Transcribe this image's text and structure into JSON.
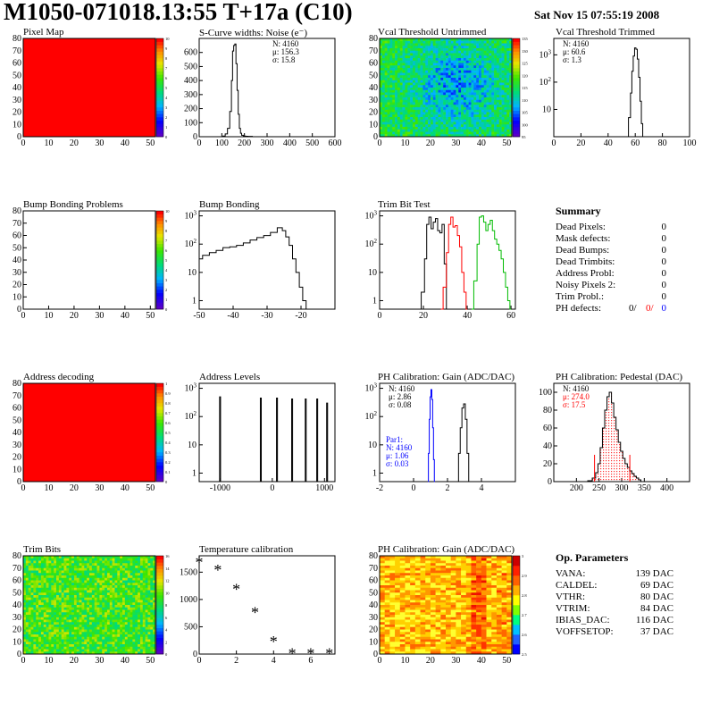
{
  "header": {
    "title": "M1050-071018.13:55 T+17a (C10)",
    "date": "Sat Nov 15 07:55:19 2008"
  },
  "chart_data": [
    {
      "id": "pixel-map",
      "type": "heatmap",
      "title": "Pixel Map",
      "xlim": [
        0,
        52
      ],
      "ylim": [
        0,
        80
      ],
      "xticks": [
        0,
        10,
        20,
        30,
        40,
        50
      ],
      "yticks": [
        0,
        10,
        20,
        30,
        40,
        50,
        60,
        70,
        80
      ],
      "fill": "uniform",
      "fill_color": "#ff0000",
      "zlim": [
        0,
        10
      ],
      "palette_ticks": [
        "0",
        "1",
        "2",
        "3",
        "4",
        "5",
        "6",
        "7",
        "8",
        "9",
        "10"
      ]
    },
    {
      "id": "scurve",
      "type": "line",
      "title": "S-Curve widths: Noise (e⁻)",
      "xlim": [
        0,
        600
      ],
      "ylim": [
        0,
        700
      ],
      "ylog": false,
      "xticks": [
        0,
        100,
        200,
        300,
        400,
        500,
        600
      ],
      "yticks": [
        0,
        100,
        200,
        300,
        400,
        500,
        600
      ],
      "series": [
        {
          "color": "#000000",
          "x": [
            100,
            110,
            120,
            130,
            140,
            145,
            150,
            155,
            160,
            165,
            170,
            175,
            180,
            185,
            190,
            200,
            210,
            220,
            250
          ],
          "y": [
            0,
            5,
            20,
            60,
            180,
            400,
            610,
            650,
            660,
            520,
            330,
            160,
            60,
            25,
            10,
            5,
            3,
            2,
            0
          ]
        }
      ],
      "stats": [
        "N: 4160",
        "μ: 156.3",
        "σ: 15.8"
      ],
      "stat_colors": [
        "#000000",
        "#000000",
        "#000000"
      ]
    },
    {
      "id": "vcal-untrimmed",
      "type": "heatmap",
      "title": "Vcal Threshold Untrimmed",
      "xlim": [
        0,
        52
      ],
      "ylim": [
        0,
        80
      ],
      "xticks": [
        0,
        10,
        20,
        30,
        40,
        50
      ],
      "yticks": [
        0,
        10,
        20,
        30,
        40,
        50,
        60,
        70,
        80
      ],
      "fill": "noise",
      "palette_ticks": [
        "95",
        "100",
        "105",
        "110",
        "115",
        "120",
        "125",
        "130",
        "135"
      ],
      "zlim": [
        95,
        138
      ]
    },
    {
      "id": "vcal-trimmed",
      "type": "line",
      "title": "Vcal Threshold Trimmed",
      "xlim": [
        0,
        100
      ],
      "ylim": [
        1,
        4000
      ],
      "ylog": true,
      "xticks": [
        0,
        20,
        40,
        60,
        80,
        100
      ],
      "yticks": [
        10,
        100,
        1000
      ],
      "series": [
        {
          "color": "#000000",
          "x": [
            54,
            56,
            57,
            58,
            59,
            60,
            61,
            62,
            63,
            64,
            65,
            66
          ],
          "y": [
            1,
            5,
            40,
            250,
            900,
            1800,
            1600,
            700,
            150,
            20,
            3,
            1
          ]
        }
      ],
      "stats": [
        "N: 4160",
        "μ: 60.6",
        "σ:  1.3"
      ],
      "stat_colors": [
        "#000000",
        "#000000",
        "#000000"
      ]
    },
    {
      "id": "bump-problems",
      "type": "heatmap",
      "title": "Bump Bonding Problems",
      "xlim": [
        0,
        52
      ],
      "ylim": [
        0,
        80
      ],
      "xticks": [
        0,
        10,
        20,
        30,
        40,
        50
      ],
      "yticks": [
        0,
        10,
        20,
        30,
        40,
        50,
        60,
        70,
        80
      ],
      "fill": "none",
      "palette_ticks": [
        "0",
        "1",
        "2",
        "3",
        "4",
        "5",
        "6",
        "7",
        "8",
        "9",
        "10"
      ],
      "zlim": [
        0,
        10
      ]
    },
    {
      "id": "bump-bonding",
      "type": "line",
      "title": "Bump Bonding",
      "xlim": [
        -50,
        -10
      ],
      "ylim": [
        0.5,
        1500
      ],
      "ylog": true,
      "xticks": [
        -50,
        -40,
        -30,
        -20
      ],
      "yticks": [
        1,
        10,
        100,
        1000
      ],
      "series": [
        {
          "color": "#000000",
          "x": [
            -50,
            -48,
            -46,
            -44,
            -42,
            -40,
            -38,
            -36,
            -34,
            -32,
            -30,
            -28,
            -26,
            -25,
            -24,
            -23,
            -22,
            -21,
            -20,
            -19,
            -18
          ],
          "y": [
            30,
            40,
            50,
            60,
            75,
            80,
            90,
            110,
            140,
            170,
            200,
            260,
            380,
            300,
            180,
            90,
            30,
            10,
            3,
            1,
            0.5
          ]
        }
      ]
    },
    {
      "id": "trim-bit-test",
      "type": "line",
      "title": "Trim Bit Test",
      "xlim": [
        0,
        62
      ],
      "ylim": [
        0.5,
        1500
      ],
      "ylog": true,
      "xticks": [
        0,
        20,
        40,
        60
      ],
      "yticks": [
        1,
        10,
        100,
        1000
      ],
      "series": [
        {
          "color": "#000000",
          "x": [
            18,
            20,
            21,
            22,
            23,
            24,
            25,
            26,
            27,
            28,
            29,
            30,
            31
          ],
          "y": [
            0.5,
            2,
            30,
            500,
            900,
            350,
            600,
            800,
            300,
            250,
            500,
            20,
            0.5
          ]
        },
        {
          "color": "#ff0000",
          "x": [
            28,
            30,
            31,
            32,
            33,
            34,
            35,
            36,
            37,
            38,
            39,
            40
          ],
          "y": [
            0.5,
            3,
            50,
            500,
            900,
            400,
            450,
            200,
            80,
            10,
            2,
            0.5
          ]
        },
        {
          "color": "#00bb00",
          "x": [
            42,
            44,
            45,
            46,
            47,
            48,
            49,
            50,
            51,
            52,
            53,
            54,
            55,
            56,
            57,
            58,
            59,
            60
          ],
          "y": [
            0.5,
            5,
            100,
            900,
            1000,
            600,
            300,
            500,
            700,
            300,
            150,
            100,
            60,
            30,
            10,
            3,
            1,
            0.5
          ]
        }
      ]
    },
    {
      "id": "summary",
      "type": "table",
      "title": "Summary",
      "rows": [
        [
          "Dead Pixels:",
          "0"
        ],
        [
          "Mask defects:",
          "0"
        ],
        [
          "Dead Bumps:",
          "0"
        ],
        [
          "Dead Trimbits:",
          "0"
        ],
        [
          "Address Probl:",
          "0"
        ],
        [
          "Noisy Pixels 2:",
          "0"
        ],
        [
          "Trim Probl.:",
          "0"
        ]
      ],
      "ph_defects": {
        "label": "PH defects:",
        "values": [
          "0/",
          "0/",
          "0"
        ],
        "colors": [
          "#000000",
          "#ff0000",
          "#0000ff"
        ]
      }
    },
    {
      "id": "address-decoding",
      "type": "heatmap",
      "title": "Address decoding",
      "xlim": [
        0,
        52
      ],
      "ylim": [
        0,
        80
      ],
      "xticks": [
        0,
        10,
        20,
        30,
        40,
        50
      ],
      "yticks": [
        0,
        10,
        20,
        30,
        40,
        50,
        60,
        70,
        80
      ],
      "fill": "uniform",
      "fill_color": "#ff0000",
      "zlim": [
        0,
        1
      ],
      "palette_ticks": [
        "0",
        "0.1",
        "0.2",
        "0.3",
        "0.4",
        "0.5",
        "0.6",
        "0.7",
        "0.8",
        "0.9",
        "1"
      ]
    },
    {
      "id": "address-levels",
      "type": "line",
      "title": "Address Levels",
      "xlim": [
        -1400,
        1200
      ],
      "ylim": [
        0.5,
        1500
      ],
      "ylog": true,
      "xticks": [
        -1000,
        0,
        1000
      ],
      "yticks": [
        1,
        10,
        100,
        1000
      ],
      "spikes": [
        {
          "x": -1000,
          "h": 500
        },
        {
          "x": -220,
          "h": 450
        },
        {
          "x": 90,
          "h": 450
        },
        {
          "x": 380,
          "h": 420
        },
        {
          "x": 640,
          "h": 420
        },
        {
          "x": 860,
          "h": 420
        },
        {
          "x": 1050,
          "h": 300
        }
      ],
      "spike_width": 18
    },
    {
      "id": "ph-gain",
      "type": "line",
      "title": "PH Calibration: Gain (ADC/DAC)",
      "xlim": [
        -2,
        6
      ],
      "ylim": [
        0.5,
        1500
      ],
      "ylog": true,
      "xticks": [
        -2,
        0,
        2,
        4
      ],
      "yticks": [
        1,
        10,
        100,
        1000
      ],
      "series": [
        {
          "color": "#0000ff",
          "x": [
            0.85,
            0.9,
            0.95,
            1.0,
            1.05,
            1.1,
            1.15,
            1.2,
            1.25
          ],
          "y": [
            0.5,
            5,
            80,
            500,
            900,
            400,
            40,
            3,
            0.5
          ]
        },
        {
          "color": "#000000",
          "x": [
            2.6,
            2.7,
            2.8,
            2.9,
            3.0,
            3.1,
            3.2,
            3.3
          ],
          "y": [
            0.5,
            5,
            40,
            200,
            280,
            80,
            5,
            0.5
          ]
        }
      ],
      "stats": [
        "N: 4160",
        "μ: 2.86",
        "σ: 0.08"
      ],
      "stat_colors": [
        "#000000",
        "#000000",
        "#000000"
      ],
      "stats2": [
        "Par1:",
        "N: 4160",
        "μ: 1.06",
        "σ: 0.03"
      ],
      "stats2_colors": [
        "#0000ff",
        "#0000ff",
        "#0000ff",
        "#0000ff"
      ]
    },
    {
      "id": "ph-pedestal",
      "type": "line",
      "title": "PH Calibration: Pedestal (DAC)",
      "xlim": [
        150,
        450
      ],
      "ylim": [
        0,
        110
      ],
      "ylog": false,
      "xticks": [
        200,
        250,
        300,
        350,
        400
      ],
      "yticks": [
        0,
        20,
        40,
        60,
        80,
        100
      ],
      "series": [
        {
          "color": "#000000",
          "x": [
            220,
            230,
            240,
            245,
            250,
            255,
            260,
            265,
            270,
            275,
            280,
            285,
            290,
            295,
            300,
            305,
            310,
            315,
            320,
            325,
            330,
            335,
            340,
            345
          ],
          "y": [
            0,
            1,
            4,
            10,
            20,
            38,
            60,
            80,
            95,
            100,
            88,
            72,
            58,
            44,
            34,
            26,
            20,
            16,
            12,
            9,
            6,
            4,
            2,
            0
          ]
        }
      ],
      "hatched": true,
      "stats": [
        "N: 4160",
        "μ: 274.0",
        "σ: 17.5"
      ],
      "stat_colors": [
        "#000000",
        "#ff0000",
        "#ff0000"
      ],
      "vlines": [
        {
          "x": 240,
          "h": 30
        },
        {
          "x": 318,
          "h": 30
        }
      ],
      "vline_color": "#ff0000"
    },
    {
      "id": "trim-bits",
      "type": "heatmap",
      "title": "Trim Bits",
      "xlim": [
        0,
        52
      ],
      "ylim": [
        0,
        80
      ],
      "xticks": [
        0,
        10,
        20,
        30,
        40,
        50
      ],
      "yticks": [
        0,
        10,
        20,
        30,
        40,
        50,
        60,
        70,
        80
      ],
      "fill": "noise-green",
      "palette_ticks": [
        "0",
        "2",
        "4",
        "6",
        "8",
        "10",
        "12",
        "14",
        "16"
      ],
      "zlim": [
        0,
        16
      ]
    },
    {
      "id": "temperature",
      "type": "scatter",
      "title": "Temperature calibration",
      "xlim": [
        0,
        7.3
      ],
      "ylim": [
        0,
        1800
      ],
      "ylog": false,
      "xticks": [
        0,
        2,
        4,
        6
      ],
      "yticks": [
        0,
        500,
        1000,
        1500
      ],
      "points": [
        [
          0,
          1680
        ],
        [
          1,
          1540
        ],
        [
          2,
          1190
        ],
        [
          3,
          760
        ],
        [
          4,
          230
        ],
        [
          5,
          5
        ],
        [
          6,
          5
        ],
        [
          7,
          5
        ]
      ]
    },
    {
      "id": "ph-gain-map",
      "type": "heatmap",
      "title": "PH Calibration: Gain (ADC/DAC)",
      "xlim": [
        0,
        52
      ],
      "ylim": [
        0,
        80
      ],
      "xticks": [
        0,
        10,
        20,
        30,
        40,
        50
      ],
      "yticks": [
        0,
        10,
        20,
        30,
        40,
        50,
        60,
        70,
        80
      ],
      "fill": "warm",
      "palette_ticks": [
        "2.5",
        "2.6",
        "2.7",
        "2.8",
        "2.9",
        "3"
      ],
      "zlim": [
        2.45,
        3.0
      ]
    },
    {
      "id": "op-params",
      "type": "table",
      "title": "Op. Parameters",
      "rows": [
        [
          "VANA:",
          "139 DAC"
        ],
        [
          "CALDEL:",
          "69 DAC"
        ],
        [
          "VTHR:",
          "80 DAC"
        ],
        [
          "VTRIM:",
          "84 DAC"
        ],
        [
          "IBIAS_DAC:",
          "116 DAC"
        ],
        [
          "VOFFSETOP:",
          "37 DAC"
        ]
      ]
    }
  ]
}
